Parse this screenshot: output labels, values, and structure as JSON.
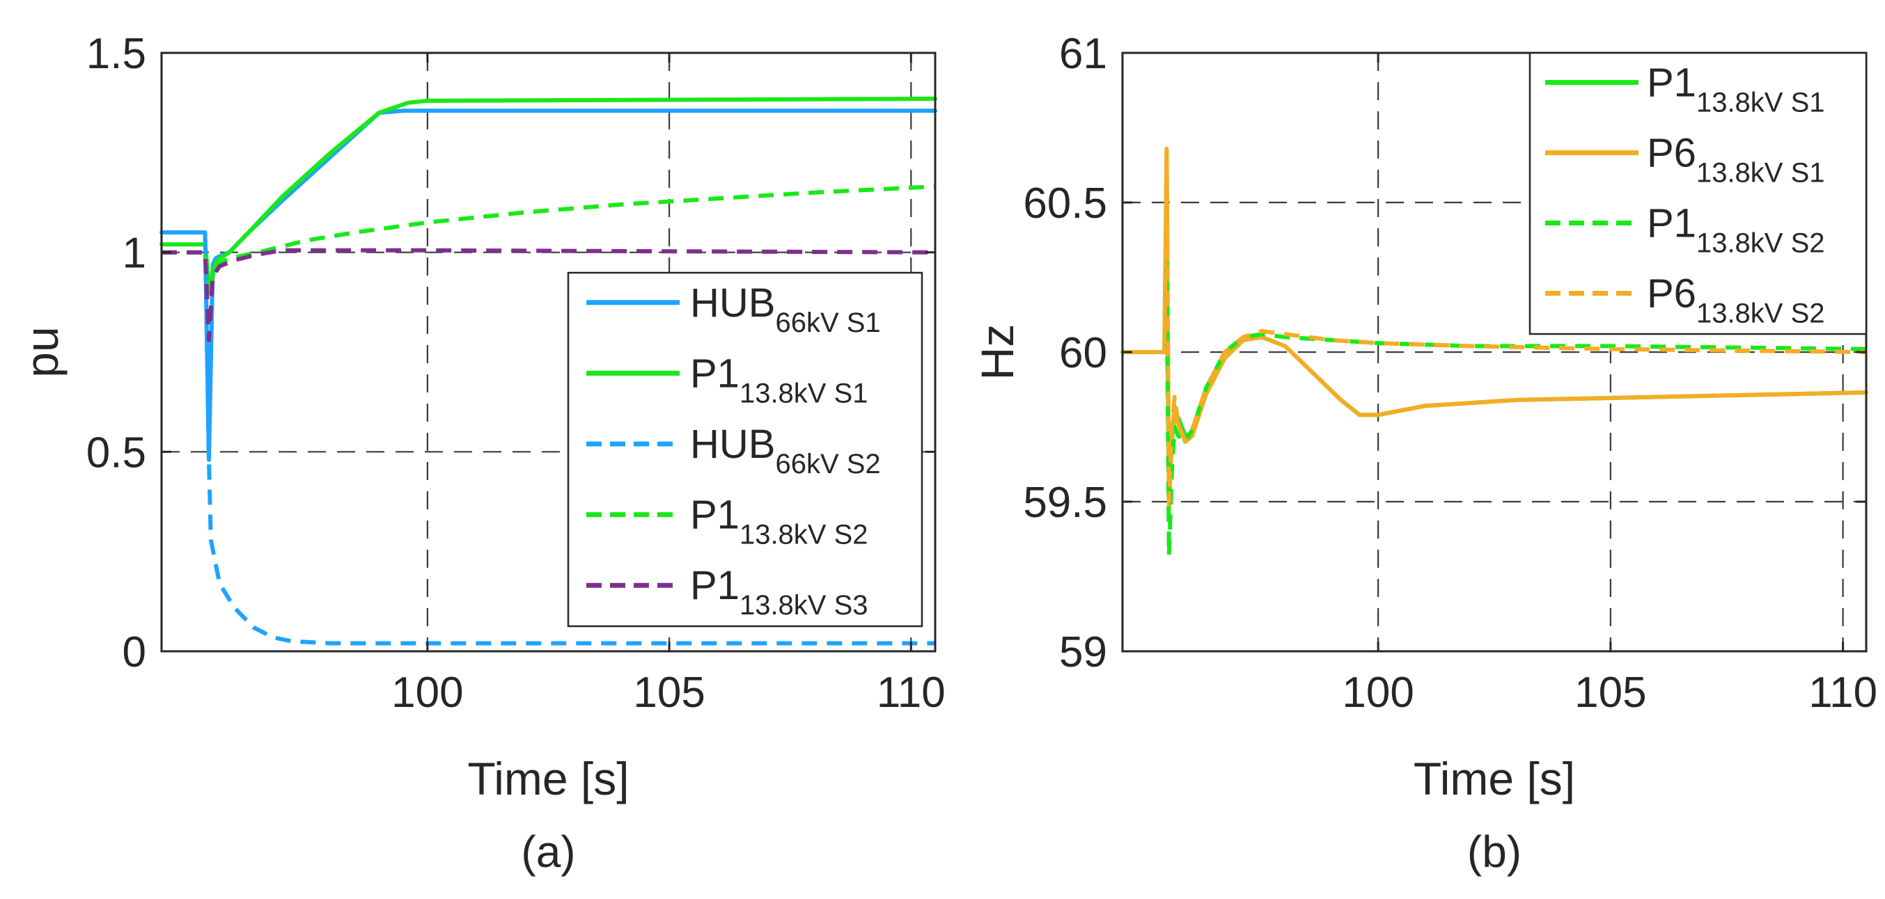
{
  "chart_data": [
    {
      "panel": "(a)",
      "type": "line",
      "caption": "(a)",
      "xlabel": "Time [s]",
      "ylabel": "pu",
      "xlim": [
        94.5,
        110.5
      ],
      "ylim": [
        0,
        1.5
      ],
      "xticks": [
        100,
        105,
        110
      ],
      "xtick_labels": [
        "100",
        "105",
        "110"
      ],
      "yticks": [
        0,
        0.5,
        1,
        1.5
      ],
      "ytick_labels": [
        "0",
        "0.5",
        "1",
        "1.5"
      ],
      "grid": true,
      "legend_position": "bottom-right",
      "series": [
        {
          "name": "HUB66kV S1",
          "label_main": "HUB",
          "label_sub": "66kV S1",
          "color": "#1fa3ff",
          "style": "solid",
          "x": [
            94.5,
            95.4,
            95.48,
            95.56,
            95.62,
            95.7,
            95.9,
            96.3,
            97.0,
            98.0,
            99.0,
            99.5,
            100.0,
            110.5
          ],
          "y": [
            1.05,
            1.05,
            0.48,
            0.97,
            0.985,
            0.99,
            1.0,
            1.05,
            1.13,
            1.24,
            1.35,
            1.355,
            1.355,
            1.355
          ]
        },
        {
          "name": "P113.8kV S1",
          "label_main": "P1",
          "label_sub": "13.8kV S1",
          "color": "#19e819",
          "style": "solid",
          "x": [
            94.5,
            95.4,
            95.5,
            95.6,
            95.7,
            95.9,
            96.3,
            97.0,
            98.0,
            99.0,
            99.6,
            100.0,
            110.5
          ],
          "y": [
            1.02,
            1.02,
            0.9,
            0.97,
            0.985,
            1.0,
            1.05,
            1.14,
            1.25,
            1.35,
            1.375,
            1.38,
            1.385
          ]
        },
        {
          "name": "HUB66kV S2",
          "label_main": "HUB",
          "label_sub": "66kV S2",
          "color": "#1fa3ff",
          "style": "dashed",
          "x": [
            94.5,
            95.4,
            95.48,
            95.52,
            95.7,
            96.0,
            96.4,
            96.8,
            97.2,
            98.0,
            99.0,
            110.5
          ],
          "y": [
            1.05,
            1.05,
            0.48,
            0.28,
            0.17,
            0.11,
            0.06,
            0.035,
            0.025,
            0.02,
            0.02,
            0.02
          ]
        },
        {
          "name": "P113.8kV S2",
          "label_main": "P1",
          "label_sub": "13.8kV S2",
          "color": "#19e819",
          "style": "dashed",
          "x": [
            94.5,
            95.4,
            95.5,
            95.6,
            95.8,
            96.1,
            96.5,
            97.5,
            98.5,
            100.0,
            102.0,
            104.0,
            106.0,
            108.0,
            110.5
          ],
          "y": [
            1.0,
            1.0,
            0.91,
            0.96,
            0.98,
            0.99,
            1.0,
            1.03,
            1.05,
            1.075,
            1.1,
            1.12,
            1.135,
            1.15,
            1.165
          ]
        },
        {
          "name": "P113.8kV S3",
          "label_main": "P1",
          "label_sub": "13.8kV S3",
          "color": "#7e2f8e",
          "style": "dashed",
          "x": [
            94.5,
            95.4,
            95.48,
            95.56,
            95.7,
            96.0,
            96.5,
            97.0,
            100.0,
            110.5
          ],
          "y": [
            1.0,
            1.0,
            0.78,
            0.94,
            0.965,
            0.98,
            0.995,
            1.005,
            1.005,
            1.0
          ]
        }
      ]
    },
    {
      "panel": "(b)",
      "type": "line",
      "caption": "(b)",
      "xlabel": "Time [s]",
      "ylabel": "Hz",
      "xlim": [
        94.5,
        110.5
      ],
      "ylim": [
        59,
        61
      ],
      "xticks": [
        100,
        105,
        110
      ],
      "xtick_labels": [
        "100",
        "105",
        "110"
      ],
      "yticks": [
        59,
        59.5,
        60,
        60.5,
        61
      ],
      "ytick_labels": [
        "59",
        "59.5",
        "60",
        "60.5",
        "61"
      ],
      "grid": true,
      "legend_position": "top-right",
      "series": [
        {
          "name": "P113.8kV S1",
          "label_main": "P1",
          "label_sub": "13.8kV S1",
          "color": "#19e819",
          "style": "solid",
          "x": [
            94.5,
            95.4,
            95.45,
            95.5,
            95.56,
            95.62,
            95.7,
            95.85,
            96.0,
            96.3,
            96.7,
            97.1,
            97.5,
            98.0,
            98.6,
            99.2,
            99.6,
            100.0,
            101.0,
            103.0,
            106.0,
            110.5
          ],
          "y": [
            60.0,
            60.0,
            60.3,
            59.5,
            59.7,
            59.8,
            59.78,
            59.72,
            59.73,
            59.86,
            59.98,
            60.04,
            60.05,
            60.02,
            59.93,
            59.84,
            59.79,
            59.79,
            59.82,
            59.84,
            59.85,
            59.865
          ]
        },
        {
          "name": "P613.8kV S1",
          "label_main": "P6",
          "label_sub": "13.8kV S1",
          "color": "#f2ad27",
          "style": "solid",
          "x": [
            94.5,
            95.4,
            95.45,
            95.5,
            95.56,
            95.62,
            95.7,
            95.85,
            96.0,
            96.3,
            96.7,
            97.1,
            97.5,
            98.0,
            98.6,
            99.2,
            99.6,
            100.0,
            101.0,
            103.0,
            106.0,
            110.5
          ],
          "y": [
            60.0,
            60.0,
            60.68,
            59.48,
            59.72,
            59.82,
            59.76,
            59.7,
            59.72,
            59.86,
            59.98,
            60.04,
            60.05,
            60.02,
            59.93,
            59.84,
            59.79,
            59.79,
            59.82,
            59.84,
            59.85,
            59.865
          ]
        },
        {
          "name": "P113.8kV S2",
          "label_main": "P1",
          "label_sub": "13.8kV S2",
          "color": "#19e819",
          "style": "dashed",
          "x": [
            94.5,
            95.4,
            95.45,
            95.5,
            95.56,
            95.62,
            95.7,
            95.85,
            96.0,
            96.3,
            96.7,
            97.1,
            97.5,
            98.0,
            99.0,
            100.0,
            102.0,
            105.0,
            110.5
          ],
          "y": [
            60.0,
            60.0,
            60.3,
            59.32,
            59.6,
            59.75,
            59.72,
            59.7,
            59.74,
            59.88,
            60.0,
            60.05,
            60.06,
            60.05,
            60.04,
            60.03,
            60.02,
            60.02,
            60.01
          ]
        },
        {
          "name": "P613.8kV S2",
          "label_main": "P6",
          "label_sub": "13.8kV S2",
          "color": "#f2ad27",
          "style": "dashed",
          "x": [
            94.5,
            95.4,
            95.45,
            95.5,
            95.56,
            95.62,
            95.7,
            95.85,
            96.0,
            96.3,
            96.7,
            97.1,
            97.5,
            98.0,
            99.0,
            100.0,
            102.0,
            105.0,
            110.5
          ],
          "y": [
            60.0,
            60.0,
            60.66,
            59.5,
            59.75,
            59.85,
            59.76,
            59.7,
            59.74,
            59.88,
            60.0,
            60.05,
            60.07,
            60.06,
            60.04,
            60.03,
            60.02,
            60.01,
            60.0
          ]
        }
      ]
    }
  ]
}
